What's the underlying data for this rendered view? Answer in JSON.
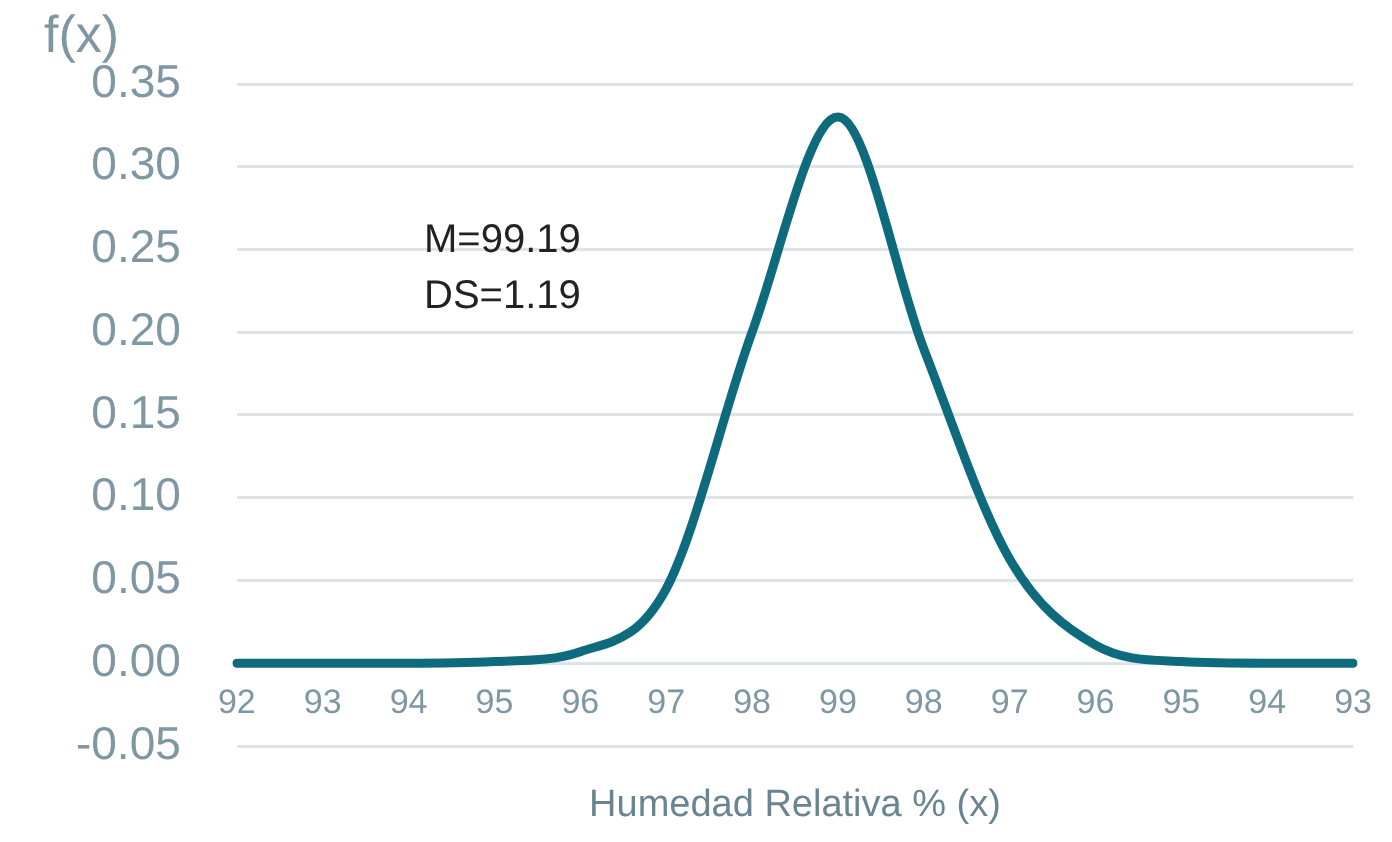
{
  "chart_data": {
    "type": "line",
    "ylabel": "f(x)",
    "xlabel": "Humedad Relativa % (x)",
    "categories": [
      "92",
      "93",
      "94",
      "95",
      "96",
      "97",
      "98",
      "99",
      "98",
      "97",
      "96",
      "95",
      "94",
      "93"
    ],
    "series": [
      {
        "color": "#0e6b7d",
        "values": [
          0,
          0,
          0,
          0.001,
          0.007,
          0.045,
          0.2,
          0.33,
          0.19,
          0.063,
          0.011,
          0.001,
          0,
          0
        ]
      }
    ],
    "ylim": [
      -0.05,
      0.35
    ],
    "yticks": [
      {
        "value": -0.05,
        "label": "-0.05"
      },
      {
        "value": 0,
        "label": "0.00"
      },
      {
        "value": 0.05,
        "label": "0.05"
      },
      {
        "value": 0.1,
        "label": "0.10"
      },
      {
        "value": 0.15,
        "label": "0.15"
      },
      {
        "value": 0.2,
        "label": "0.20"
      },
      {
        "value": 0.25,
        "label": "0.25"
      },
      {
        "value": 0.3,
        "label": "0.30"
      },
      {
        "value": 0.35,
        "label": "0.35"
      }
    ],
    "grid": "y",
    "marker": "none",
    "line_style": "solid",
    "annotations": [
      "M=99.19",
      "DS=1.19"
    ]
  }
}
